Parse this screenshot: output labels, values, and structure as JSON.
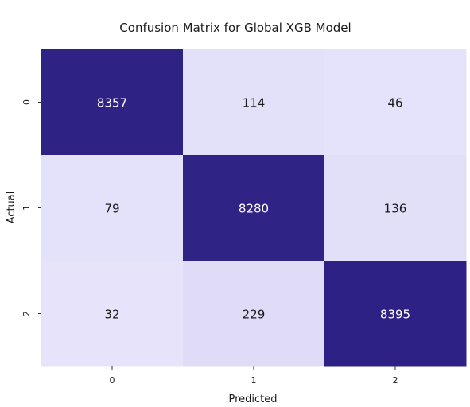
{
  "chart_data": {
    "type": "heatmap",
    "title": "Confusion Matrix for Global XGB Model",
    "xlabel": "Predicted",
    "ylabel": "Actual",
    "x_categories": [
      "0",
      "1",
      "2"
    ],
    "y_categories": [
      "0",
      "1",
      "2"
    ],
    "values": [
      [
        8357,
        114,
        46
      ],
      [
        79,
        8280,
        136
      ],
      [
        32,
        229,
        8395
      ]
    ],
    "colormap": {
      "low": "#e6e3fb",
      "high": "#2e2185"
    },
    "text_colors": {
      "on_dark": "#ffffff",
      "on_light": "#1a1a1a"
    },
    "colorbar": false
  }
}
